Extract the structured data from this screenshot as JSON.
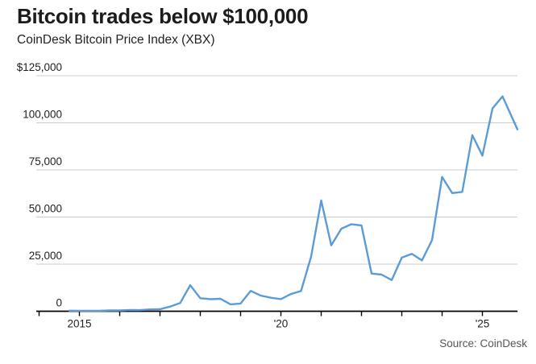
{
  "header": {
    "title": "Bitcoin trades below $100,000",
    "subtitle": "CoinDesk Bitcoin Price Index (XBX)"
  },
  "footer": {
    "source": "Source: CoinDesk"
  },
  "chart_data": {
    "type": "line",
    "title": "Bitcoin trades below $100,000",
    "series_name": "CoinDesk Bitcoin Price Index (XBX)",
    "currency": "USD",
    "grid": true,
    "legend": "none",
    "line_color": "#5b9cd6",
    "grid_color": "#cdcdcd",
    "axis_color": "#000000",
    "text_color": "#1f1f1f",
    "x_range": [
      2014.73,
      2025.87
    ],
    "y_range": [
      0,
      125000
    ],
    "y_ticks": [
      {
        "value": 0,
        "label": "0"
      },
      {
        "value": 25000,
        "label": "25,000"
      },
      {
        "value": 50000,
        "label": "50,000"
      },
      {
        "value": 75000,
        "label": "75,000"
      },
      {
        "value": 100000,
        "label": "100,000"
      },
      {
        "value": 125000,
        "label": "$125,000"
      }
    ],
    "x_ticks": [
      {
        "year": 2014,
        "label": ""
      },
      {
        "year": 2015,
        "label": "2015"
      },
      {
        "year": 2016,
        "label": ""
      },
      {
        "year": 2017,
        "label": ""
      },
      {
        "year": 2018,
        "label": ""
      },
      {
        "year": 2019,
        "label": ""
      },
      {
        "year": 2020,
        "label": "'20"
      },
      {
        "year": 2021,
        "label": ""
      },
      {
        "year": 2022,
        "label": ""
      },
      {
        "year": 2023,
        "label": ""
      },
      {
        "year": 2024,
        "label": ""
      },
      {
        "year": 2025,
        "label": "'25"
      }
    ],
    "points": [
      [
        2014.75,
        320
      ],
      [
        2015.0,
        244
      ],
      [
        2015.25,
        263
      ],
      [
        2015.5,
        236
      ],
      [
        2015.75,
        430
      ],
      [
        2016.0,
        416
      ],
      [
        2016.25,
        673
      ],
      [
        2016.5,
        610
      ],
      [
        2016.75,
        963
      ],
      [
        2017.0,
        1080
      ],
      [
        2017.25,
        2480
      ],
      [
        2017.5,
        4360
      ],
      [
        2017.75,
        13850
      ],
      [
        2018.0,
        6940
      ],
      [
        2018.25,
        6400
      ],
      [
        2018.5,
        6625
      ],
      [
        2018.75,
        3690
      ],
      [
        2019.0,
        4100
      ],
      [
        2019.25,
        10800
      ],
      [
        2019.5,
        8290
      ],
      [
        2019.75,
        7190
      ],
      [
        2020.0,
        6440
      ],
      [
        2020.25,
        9140
      ],
      [
        2020.5,
        10780
      ],
      [
        2020.75,
        29000
      ],
      [
        2021.0,
        58800
      ],
      [
        2021.25,
        35000
      ],
      [
        2021.5,
        43800
      ],
      [
        2021.75,
        46200
      ],
      [
        2022.0,
        45500
      ],
      [
        2022.25,
        19985
      ],
      [
        2022.5,
        19430
      ],
      [
        2022.75,
        16540
      ],
      [
        2023.0,
        28480
      ],
      [
        2023.25,
        30470
      ],
      [
        2023.5,
        26970
      ],
      [
        2023.75,
        37720
      ],
      [
        2024.0,
        71300
      ],
      [
        2024.25,
        62680
      ],
      [
        2024.5,
        63330
      ],
      [
        2024.75,
        93430
      ],
      [
        2025.0,
        82550
      ],
      [
        2025.25,
        107600
      ],
      [
        2025.5,
        114000
      ],
      [
        2025.87,
        96500
      ]
    ]
  }
}
